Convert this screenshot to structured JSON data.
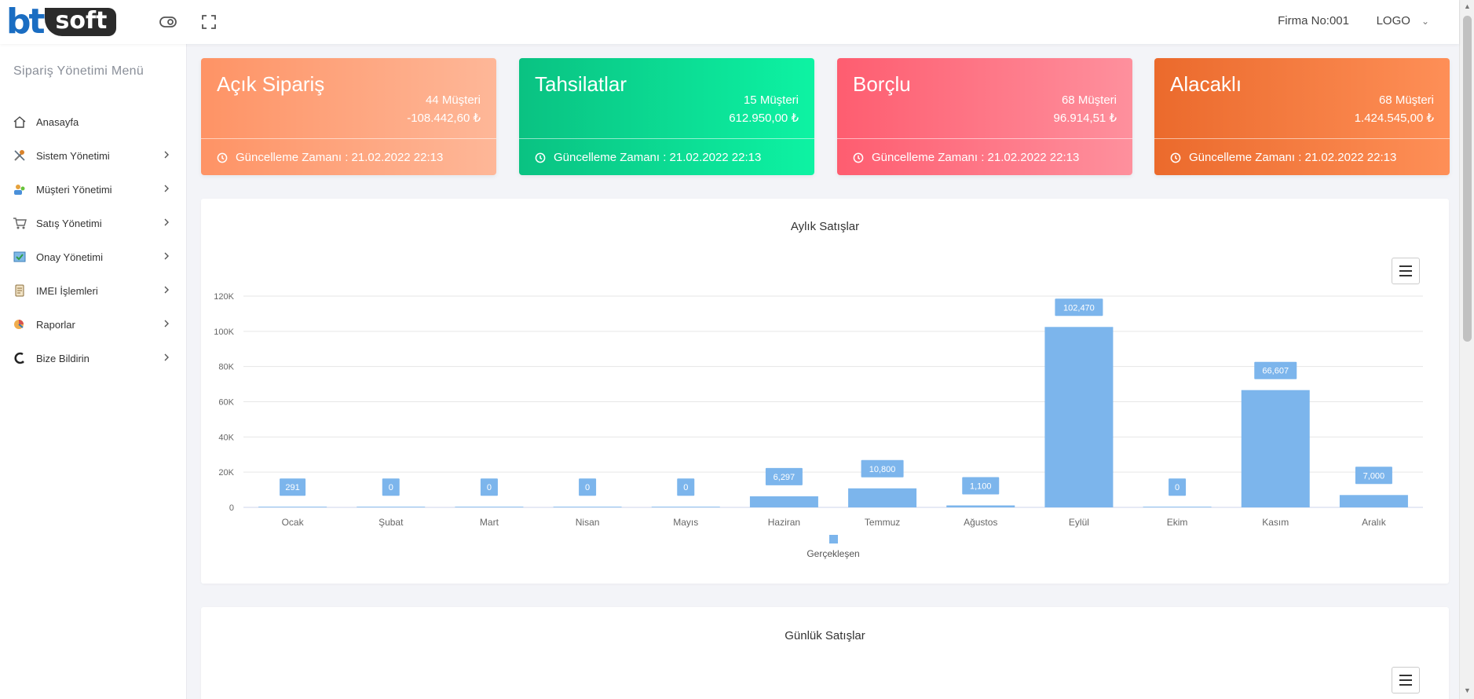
{
  "header": {
    "logo_bt": "bt",
    "logo_soft": "soft",
    "firma": "Firma No:001",
    "user_menu": "LOGO"
  },
  "sidebar": {
    "title": "Sipariş Yönetimi Menü",
    "items": [
      {
        "label": "Anasayfa",
        "icon": "home-icon",
        "has_submenu": false
      },
      {
        "label": "Sistem Yönetimi",
        "icon": "tools-icon",
        "has_submenu": true
      },
      {
        "label": "Müşteri Yönetimi",
        "icon": "customers-icon",
        "has_submenu": true
      },
      {
        "label": "Satış Yönetimi",
        "icon": "cart-icon",
        "has_submenu": true
      },
      {
        "label": "Onay Yönetimi",
        "icon": "approval-icon",
        "has_submenu": true
      },
      {
        "label": "IMEI İşlemleri",
        "icon": "imei-icon",
        "has_submenu": true
      },
      {
        "label": "Raporlar",
        "icon": "reports-icon",
        "has_submenu": true
      },
      {
        "label": "Bize Bildirin",
        "icon": "support-icon",
        "has_submenu": true
      }
    ]
  },
  "cards": [
    {
      "title": "Açık Sipariş",
      "customers": "44 Müşteri",
      "amount": "-108.442,60 ₺",
      "footer": "Güncelleme Zamanı : 21.02.2022 22:13"
    },
    {
      "title": "Tahsilatlar",
      "customers": "15 Müşteri",
      "amount": "612.950,00 ₺",
      "footer": "Güncelleme Zamanı : 21.02.2022 22:13"
    },
    {
      "title": "Borçlu",
      "customers": "68 Müşteri",
      "amount": "96.914,51 ₺",
      "footer": "Güncelleme Zamanı : 21.02.2022 22:13"
    },
    {
      "title": "Alacaklı",
      "customers": "68 Müşteri",
      "amount": "1.424.545,00 ₺",
      "footer": "Güncelleme Zamanı : 21.02.2022 22:13"
    }
  ],
  "panels": {
    "monthly_title": "Aylık Satışlar",
    "daily_title": "Günlük Satışlar"
  },
  "chart_data": {
    "type": "bar",
    "title": "Aylık Satışlar",
    "categories": [
      "Ocak",
      "Şubat",
      "Mart",
      "Nisan",
      "Mayıs",
      "Haziran",
      "Temmuz",
      "Ağustos",
      "Eylül",
      "Ekim",
      "Kasım",
      "Aralık"
    ],
    "series": [
      {
        "name": "Gerçekleşen",
        "values": [
          291,
          0,
          0,
          0,
          0,
          6297,
          10800,
          1100,
          102470,
          0,
          66607,
          7000
        ]
      }
    ],
    "data_labels": [
      "291",
      "0",
      "0",
      "0",
      "0",
      "6,297",
      "10,800",
      "1,100",
      "102,470",
      "0",
      "66,607",
      "7,000"
    ],
    "y_ticks": [
      "0",
      "20K",
      "40K",
      "60K",
      "80K",
      "100K",
      "120K"
    ],
    "ylim": [
      0,
      120000
    ],
    "grid": true,
    "legend": "bottom-center",
    "color": "#7cb5ec"
  }
}
